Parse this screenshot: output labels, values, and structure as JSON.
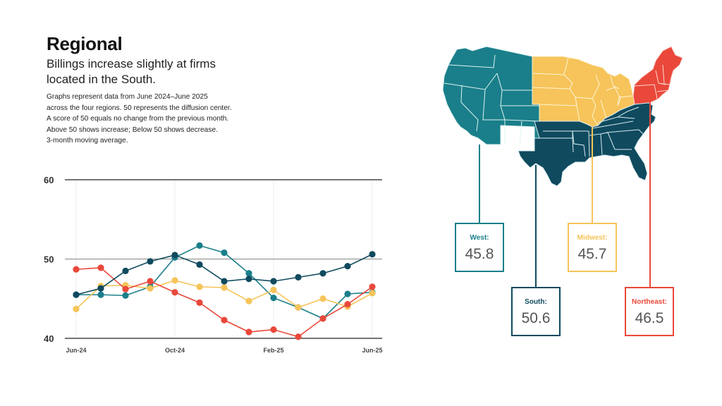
{
  "header": {
    "title": "Regional",
    "subtitle_lines": [
      "Billings increase slightly at firms",
      "located in the South."
    ],
    "description_lines": [
      "Graphs represent data from June 2024–June 2025",
      "across the four regions. 50 represents the diffusion center.",
      "A score of 50 equals no change from the previous month.",
      "Above 50 shows increase; Below 50 shows decrease.",
      "3-month moving average."
    ]
  },
  "colors": {
    "west": "#1a7f8a",
    "south": "#0f4a5e",
    "midwest": "#f6c45a",
    "northeast": "#e9483a"
  },
  "chart_data": {
    "type": "line",
    "title": "Regional billings index (3-month moving average)",
    "xlabel": "",
    "ylabel": "",
    "ylim": [
      40,
      60
    ],
    "yticks": [
      40,
      50,
      60
    ],
    "grid": true,
    "x": [
      "Jun-24",
      "Jul-24",
      "Aug-24",
      "Sep-24",
      "Oct-24",
      "Nov-24",
      "Dec-24",
      "Jan-25",
      "Feb-25",
      "Mar-25",
      "Apr-25",
      "May-25",
      "Jun-25"
    ],
    "xtick_labels": [
      {
        "index": 0,
        "label": "Jun-24"
      },
      {
        "index": 4,
        "label": "Oct-24"
      },
      {
        "index": 8,
        "label": "Feb-25"
      },
      {
        "index": 12,
        "label": "Jun-25"
      }
    ],
    "series": [
      {
        "name": "West",
        "key": "west",
        "values": [
          45.5,
          45.5,
          45.4,
          46.5,
          50.2,
          51.7,
          50.8,
          48.2,
          45.1,
          43.9,
          42.5,
          45.6,
          45.8
        ]
      },
      {
        "name": "Midwest",
        "key": "midwest",
        "values": [
          43.7,
          46.6,
          46.7,
          46.3,
          47.3,
          46.5,
          46.4,
          44.7,
          46.1,
          43.9,
          45.0,
          44.0,
          45.7
        ]
      },
      {
        "name": "Northeast",
        "key": "northeast",
        "values": [
          48.7,
          48.9,
          46.2,
          47.2,
          45.8,
          44.5,
          42.3,
          40.8,
          41.1,
          40.2,
          42.5,
          44.3,
          46.5
        ]
      },
      {
        "name": "South",
        "key": "south",
        "values": [
          45.5,
          46.3,
          48.5,
          49.7,
          50.5,
          49.3,
          47.2,
          47.5,
          47.2,
          47.7,
          48.2,
          49.1,
          50.6
        ]
      }
    ]
  },
  "map": {
    "regions": [
      {
        "key": "west",
        "label": "West:",
        "value": "45.8"
      },
      {
        "key": "south",
        "label": "South:",
        "value": "50.6"
      },
      {
        "key": "midwest",
        "label": "Midwest:",
        "value": "45.7"
      },
      {
        "key": "northeast",
        "label": "Northeast:",
        "value": "46.5"
      }
    ]
  }
}
